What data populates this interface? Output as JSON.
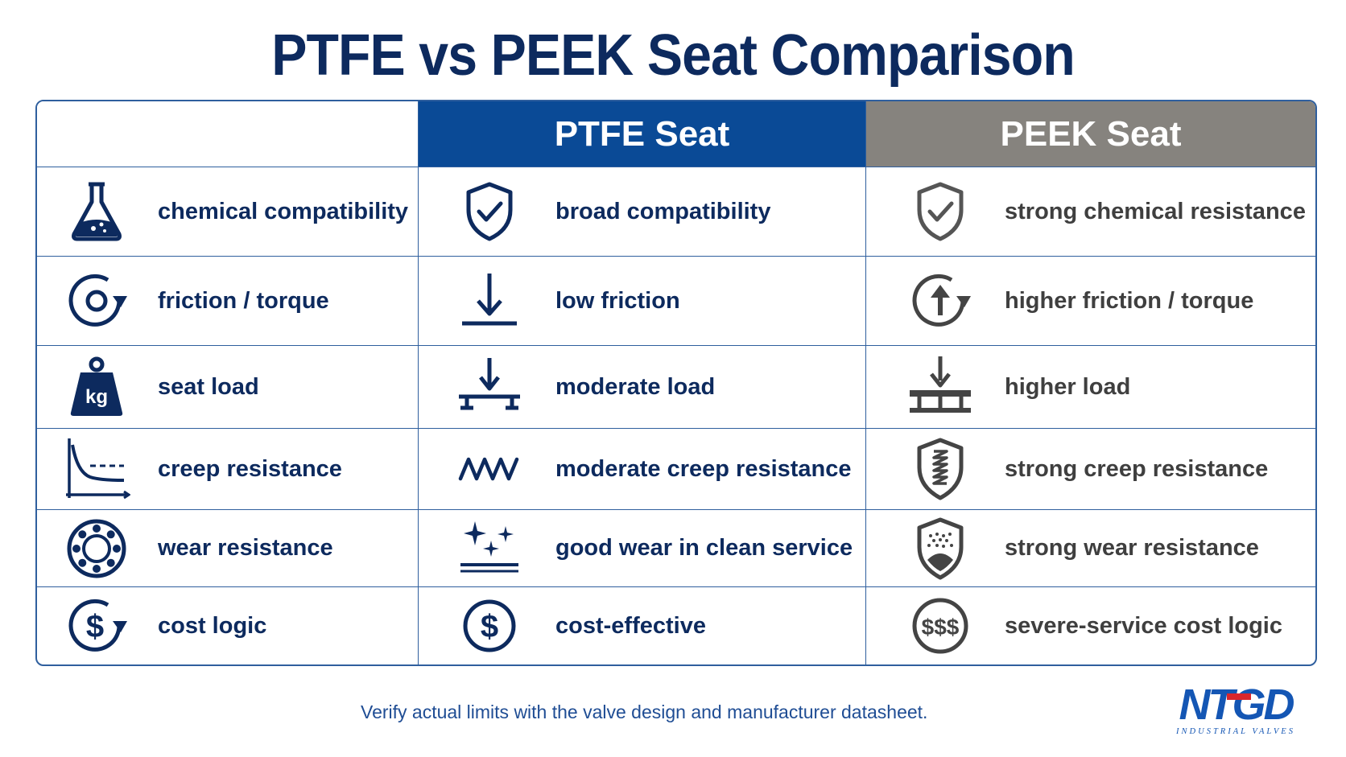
{
  "title": "PTFE vs PEEK Seat Comparison",
  "columns": {
    "blank": "",
    "ptfe": "PTFE Seat",
    "peek": "PEEK Seat"
  },
  "rows": [
    {
      "criterion": "chemical compatibility",
      "ptfe": "broad compatibility",
      "peek": "strong chemical resistance",
      "icons": {
        "criterion": "flask-icon",
        "ptfe": "shield-check-icon",
        "peek": "shield-check-icon"
      }
    },
    {
      "criterion": "friction / torque",
      "ptfe": "low friction",
      "peek": "higher friction / torque",
      "icons": {
        "criterion": "rotation-icon",
        "ptfe": "arrow-down-line-icon",
        "peek": "arrow-up-circle-icon"
      }
    },
    {
      "criterion": "seat load",
      "ptfe": "moderate load",
      "peek": "higher load",
      "icons": {
        "criterion": "kg-weight-icon",
        "ptfe": "load-support-icon",
        "peek": "heavy-load-support-icon"
      }
    },
    {
      "criterion": "creep resistance",
      "ptfe": "moderate creep resistance",
      "peek": "strong creep resistance",
      "icons": {
        "criterion": "creep-curve-icon",
        "ptfe": "wave-icon",
        "peek": "shield-spring-icon"
      }
    },
    {
      "criterion": "wear resistance",
      "ptfe": "good wear in clean service",
      "peek": "strong wear resistance",
      "icons": {
        "criterion": "bearing-icon",
        "ptfe": "sparkle-surface-icon",
        "peek": "shield-particles-icon"
      }
    },
    {
      "criterion": "cost logic",
      "ptfe": "cost-effective",
      "peek": "severe-service cost logic",
      "icons": {
        "criterion": "dollar-cycle-icon",
        "ptfe": "dollar-coin-icon",
        "peek": "triple-dollar-icon"
      }
    }
  ],
  "footnote": "Verify actual limits with the valve design and manufacturer datasheet.",
  "logo": {
    "mark": "NTGD",
    "tagline": "INDUSTRIAL VALVES"
  },
  "colors": {
    "navy": "#0d2a5e",
    "ptfe_header": "#0a4a96",
    "peek_header": "#86837e",
    "grid": "#2f5f9e",
    "gray_text": "#3f3f3f"
  }
}
